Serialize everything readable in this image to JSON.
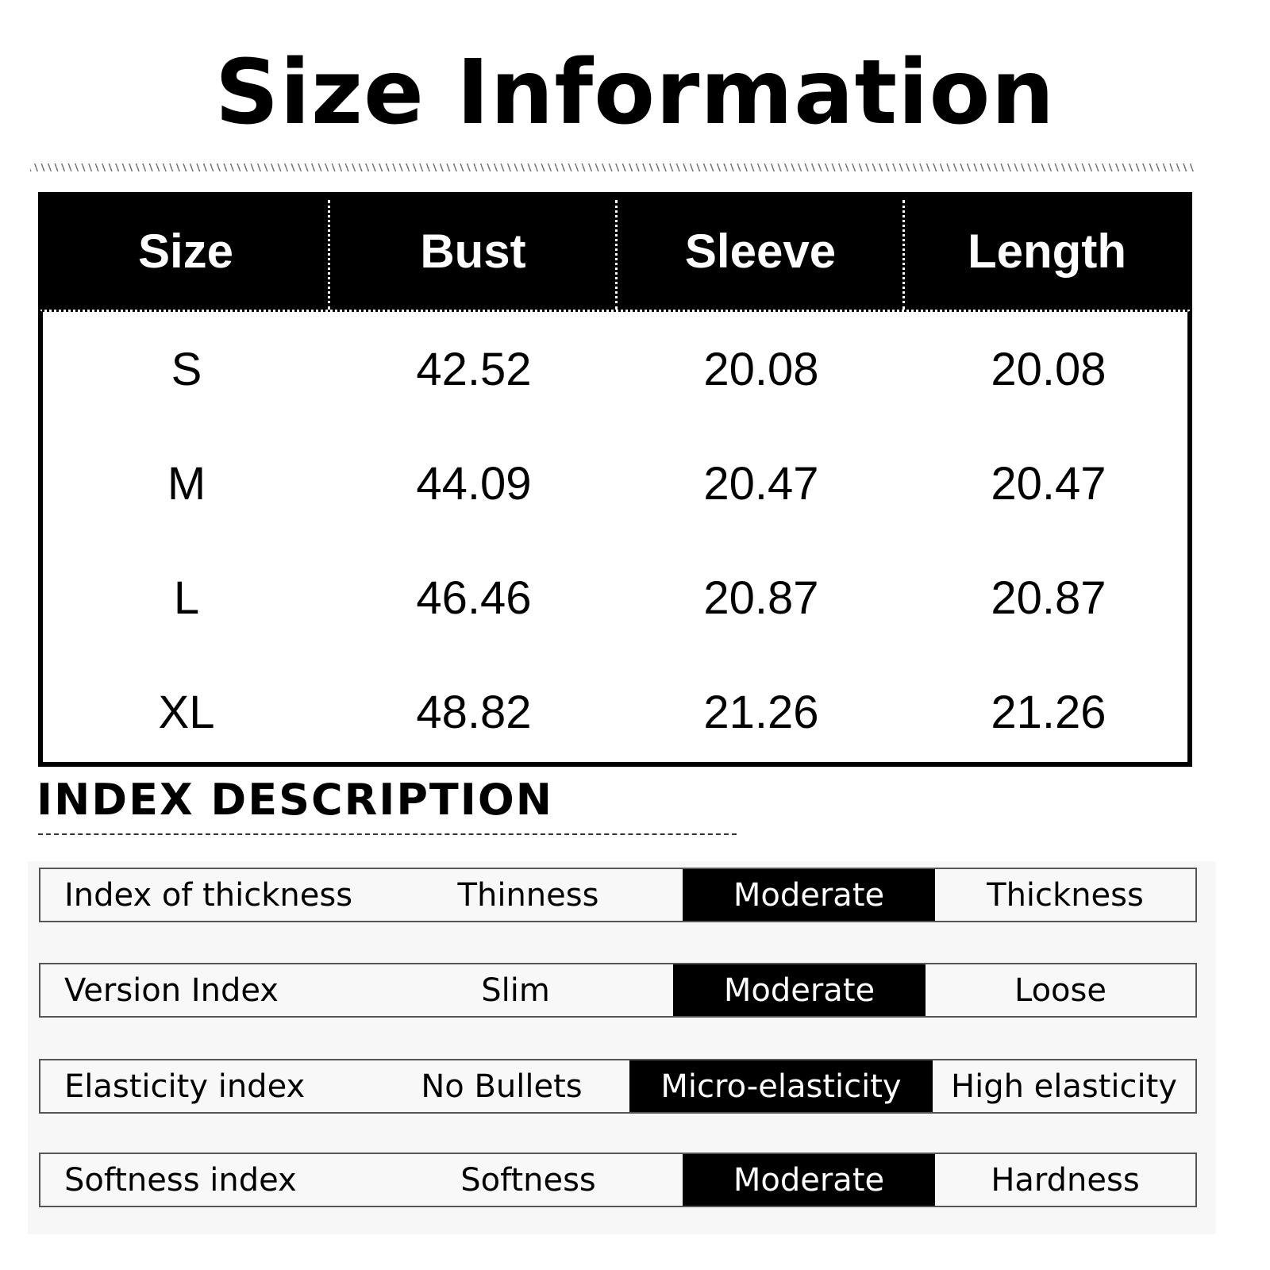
{
  "title": "Size Information",
  "size_table": {
    "headers": [
      "Size",
      "Bust",
      "Sleeve",
      "Length"
    ],
    "rows": [
      [
        "S",
        "42.52",
        "20.08",
        "20.08"
      ],
      [
        "M",
        "44.09",
        "20.47",
        "20.47"
      ],
      [
        "L",
        "46.46",
        "20.87",
        "20.87"
      ],
      [
        "XL",
        "48.82",
        "21.26",
        "21.26"
      ]
    ]
  },
  "index_description": {
    "title": "INDEX DESCRIPTION",
    "selected_color": "#000000",
    "rows": [
      {
        "label": "Index of thickness",
        "options": [
          "Thinness",
          "Moderate",
          "Thickness"
        ],
        "selected": 1
      },
      {
        "label": "Version Index",
        "options": [
          "Slim",
          "Moderate",
          "Loose"
        ],
        "selected": 1
      },
      {
        "label": "Elasticity index",
        "options": [
          "No Bullets",
          "Micro-elasticity",
          "High elasticity"
        ],
        "selected": 1
      },
      {
        "label": "Softness index",
        "options": [
          "Softness",
          "Moderate",
          "Hardness"
        ],
        "selected": 1
      }
    ]
  }
}
